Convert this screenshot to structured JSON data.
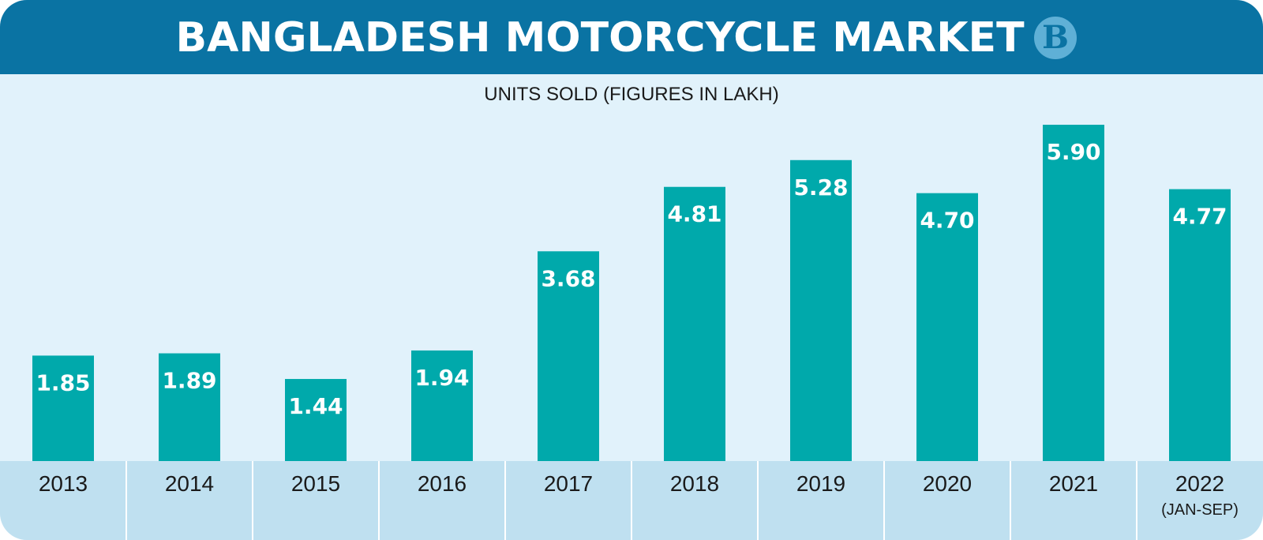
{
  "header": {
    "title": "BANGLADESH MOTORCYCLE MARKET",
    "logo_text": "B"
  },
  "colors": {
    "header_bg": "#0a73a3",
    "plot_bg": "#e1f2fb",
    "bar": "#00a9ab",
    "category_band": "#bfe0f0",
    "logo_bg": "#5fb0d6"
  },
  "chart_data": {
    "type": "bar",
    "title": "BANGLADESH MOTORCYCLE MARKET",
    "subtitle": "UNITS SOLD (FIGURES IN LAKH)",
    "categories": [
      "2013",
      "2014",
      "2015",
      "2016",
      "2017",
      "2018",
      "2019",
      "2020",
      "2021",
      "2022"
    ],
    "category_sublabels": [
      "",
      "",
      "",
      "",
      "",
      "",
      "",
      "",
      "",
      "(JAN-SEP)"
    ],
    "values": [
      1.85,
      1.89,
      1.44,
      1.94,
      3.68,
      4.81,
      5.28,
      4.7,
      5.9,
      4.77
    ],
    "data_labels": [
      "1.85",
      "1.89",
      "1.44",
      "1.94",
      "3.68",
      "4.81",
      "5.28",
      "4.70",
      "5.90",
      "4.77"
    ],
    "ylim": [
      0,
      6.0
    ],
    "grid": false,
    "legend": "none"
  }
}
